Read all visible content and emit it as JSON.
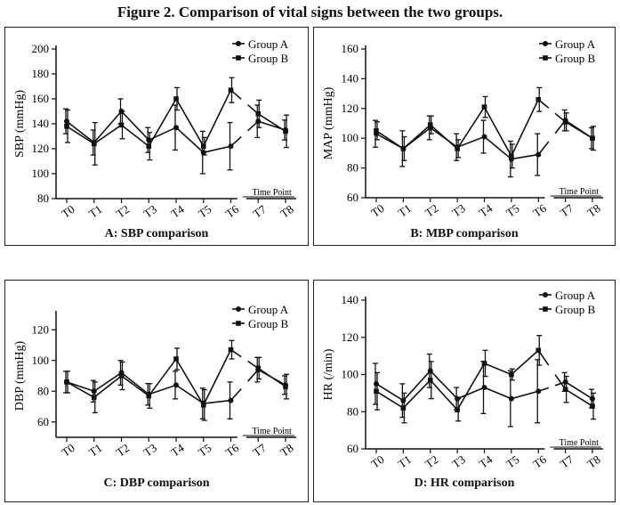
{
  "figure_title": "Figure 2. Comparison of vital signs between the two groups.",
  "chart_data": [
    {
      "type": "line",
      "caption": "A: SBP comparison",
      "ylabel": "SBP (mmHg)",
      "xlabel": "Time Point",
      "ylim": [
        80,
        200
      ],
      "yticks": [
        80,
        100,
        120,
        140,
        160,
        180,
        200
      ],
      "categories": [
        "T0",
        "T1",
        "T2",
        "T3",
        "T4",
        "T5",
        "T6",
        "T7",
        "T8"
      ],
      "legend": "top-right",
      "series": [
        {
          "name": "Group A",
          "marker": "circle",
          "values": [
            142,
            125,
            150,
            127,
            137,
            117,
            122,
            142,
            135
          ],
          "errors": [
            10,
            10,
            10,
            10,
            18,
            17,
            19,
            13,
            8
          ]
        },
        {
          "name": "Group B",
          "marker": "square",
          "values": [
            138,
            124,
            139,
            122,
            160,
            122,
            167,
            148,
            134
          ],
          "errors": [
            13,
            17,
            11,
            11,
            9,
            7,
            10,
            11,
            13
          ]
        }
      ]
    },
    {
      "type": "line",
      "caption": "B: MBP comparison",
      "ylabel": "MAP (mmHg)",
      "xlabel": "Time Point",
      "ylim": [
        60,
        160
      ],
      "yticks": [
        60,
        80,
        100,
        120,
        140,
        160
      ],
      "categories": [
        "T0",
        "T1",
        "T2",
        "T3",
        "T4",
        "T5",
        "T6",
        "T7",
        "T8"
      ],
      "legend": "top-right",
      "series": [
        {
          "name": "Group A",
          "marker": "circle",
          "values": [
            103,
            93,
            107,
            94,
            101,
            86,
            89,
            112,
            100
          ],
          "errors": [
            9,
            12,
            8,
            9,
            11,
            12,
            14,
            7,
            7
          ]
        },
        {
          "name": "Group B",
          "marker": "square",
          "values": [
            105,
            93,
            109,
            93,
            121,
            88,
            126,
            111,
            100
          ],
          "errors": [
            6,
            8,
            6,
            6,
            7,
            8,
            8,
            6,
            8
          ]
        }
      ]
    },
    {
      "type": "line",
      "caption": "C: DBP comparison",
      "ylabel": "DBP (mmHg)",
      "xlabel": "Time Point",
      "ylim": [
        50,
        130
      ],
      "yticks": [
        60,
        80,
        100,
        120
      ],
      "categories": [
        "T0",
        "T1",
        "T2",
        "T3",
        "T4",
        "T5",
        "T6",
        "T7",
        "T8"
      ],
      "legend": "top-right",
      "series": [
        {
          "name": "Group A",
          "marker": "circle",
          "values": [
            86,
            80,
            92,
            78,
            84,
            72,
            74,
            94,
            84
          ],
          "errors": [
            7,
            7,
            8,
            7,
            9,
            10,
            12,
            8,
            6
          ]
        },
        {
          "name": "Group B",
          "marker": "square",
          "values": [
            86,
            76,
            90,
            77,
            101,
            71,
            107,
            95,
            83
          ],
          "errors": [
            7,
            10,
            9,
            8,
            7,
            10,
            6,
            7,
            8
          ]
        }
      ]
    },
    {
      "type": "line",
      "caption": "D: HR comparison",
      "ylabel": "HR (/min)",
      "xlabel": "Time Point",
      "ylim": [
        60,
        140
      ],
      "yticks": [
        60,
        80,
        100,
        120,
        140
      ],
      "categories": [
        "T0",
        "T1",
        "T2",
        "T3",
        "T4",
        "T5",
        "T6",
        "T7",
        "T8"
      ],
      "legend": "top-right",
      "series": [
        {
          "name": "Group A",
          "marker": "circle",
          "values": [
            95,
            86,
            102,
            87,
            93,
            87,
            91,
            96,
            87
          ],
          "errors": [
            11,
            9,
            9,
            6,
            14,
            15,
            17,
            5,
            5
          ]
        },
        {
          "name": "Group B",
          "marker": "square",
          "values": [
            91,
            82,
            97,
            81,
            106,
            100,
            113,
            92,
            83
          ],
          "errors": [
            10,
            8,
            10,
            6,
            7,
            3,
            8,
            7,
            7
          ]
        }
      ]
    }
  ]
}
